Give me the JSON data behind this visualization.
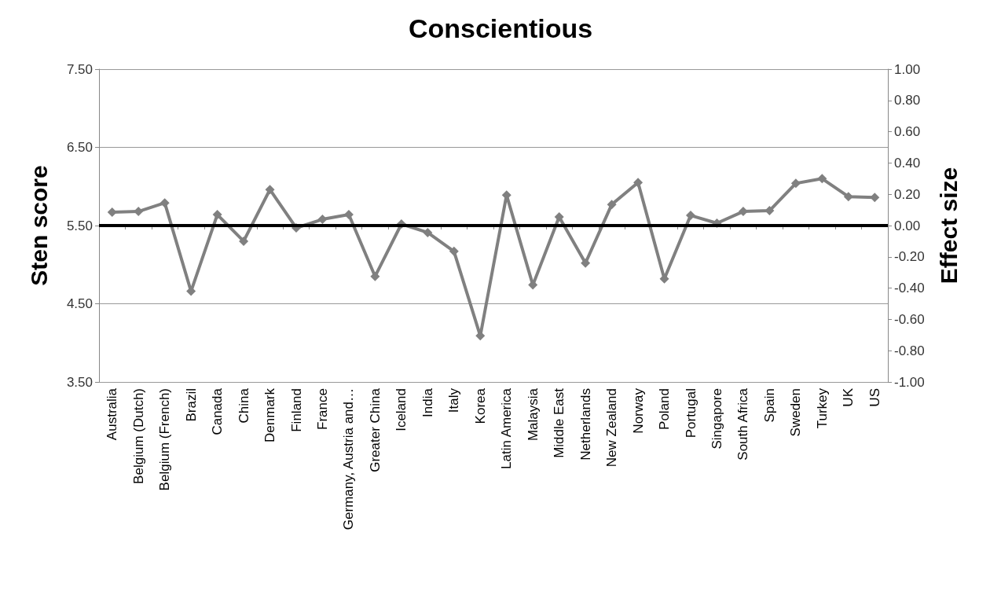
{
  "chart_data": {
    "type": "line",
    "title": "Conscientious",
    "ylabel": "Sten score",
    "y2label": "Effect size",
    "categories": [
      "Australia",
      "Belgium (Dutch)",
      "Belgium (French)",
      "Brazil",
      "Canada",
      "China",
      "Denmark",
      "Finland",
      "France",
      "Germany, Austria and…",
      "Greater China",
      "Iceland",
      "India",
      "Italy",
      "Korea",
      "Latin America",
      "Malaysia",
      "Middle East",
      "Netherlands",
      "New Zealand",
      "Norway",
      "Poland",
      "Portugal",
      "Singapore",
      "South Africa",
      "Spain",
      "Sweden",
      "Turkey",
      "UK",
      "US"
    ],
    "series": [
      {
        "color": "#808080",
        "values": [
          5.67,
          5.68,
          5.79,
          4.66,
          5.64,
          5.3,
          5.96,
          5.47,
          5.58,
          5.64,
          4.85,
          5.52,
          5.41,
          5.17,
          4.09,
          5.89,
          4.74,
          5.61,
          5.02,
          5.77,
          6.05,
          4.82,
          5.63,
          5.53,
          5.68,
          5.69,
          6.04,
          6.1,
          5.87,
          5.86
        ]
      }
    ],
    "ylim": [
      3.5,
      7.5
    ],
    "yticks": [
      {
        "value": 3.5,
        "label": "3.50"
      },
      {
        "value": 4.5,
        "label": "4.50"
      },
      {
        "value": 5.5,
        "label": "5.50"
      },
      {
        "value": 6.5,
        "label": "6.50"
      },
      {
        "value": 7.5,
        "label": "7.50"
      }
    ],
    "y2lim": [
      -1,
      1
    ],
    "y2ticks": [
      {
        "value": -1,
        "label": "-1.00"
      },
      {
        "value": -0.8,
        "label": "-0.80"
      },
      {
        "value": -0.6,
        "label": "-0.60"
      },
      {
        "value": -0.4,
        "label": "-0.40"
      },
      {
        "value": -0.2,
        "label": "-0.20"
      },
      {
        "value": 0,
        "label": "0.00"
      },
      {
        "value": 0.2,
        "label": "0.20"
      },
      {
        "value": 0.4,
        "label": "0.40"
      },
      {
        "value": 0.6,
        "label": "0.60"
      },
      {
        "value": 0.8,
        "label": "0.80"
      },
      {
        "value": 1,
        "label": "1.00"
      }
    ],
    "ref_lines": [
      {
        "axis": "y",
        "value": 5.5,
        "color": "#000000"
      }
    ],
    "grid": "y",
    "marker": "diamond",
    "line_style": "solid"
  }
}
